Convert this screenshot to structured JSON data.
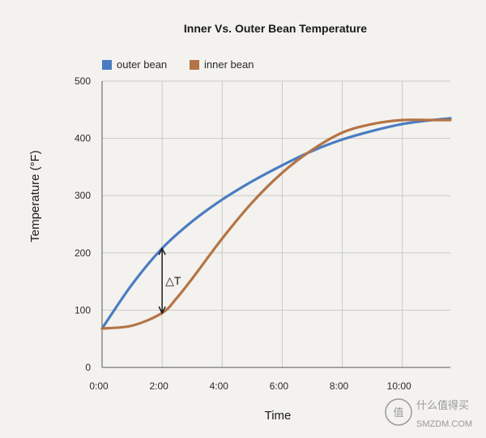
{
  "chart_data": {
    "type": "line",
    "title": "Inner Vs. Outer Bean Temperature",
    "xlabel": "Time",
    "ylabel": "Temperature (°F)",
    "xlim": [
      0,
      11.6
    ],
    "ylim": [
      0,
      500
    ],
    "x_ticks": [
      {
        "value": 0,
        "label": "0:00"
      },
      {
        "value": 2,
        "label": "2:00"
      },
      {
        "value": 4,
        "label": "4:00"
      },
      {
        "value": 6,
        "label": "6:00"
      },
      {
        "value": 8,
        "label": "8:00"
      },
      {
        "value": 10,
        "label": "10:00"
      }
    ],
    "y_ticks": [
      {
        "value": 0,
        "label": "0"
      },
      {
        "value": 100,
        "label": "100"
      },
      {
        "value": 200,
        "label": "200"
      },
      {
        "value": 300,
        "label": "300"
      },
      {
        "value": 400,
        "label": "400"
      },
      {
        "value": 500,
        "label": "500"
      }
    ],
    "grid": true,
    "legend_position": "top-left",
    "series": [
      {
        "name": "outer bean",
        "color": "#4a7cc2",
        "x": [
          0,
          1,
          2,
          3,
          4,
          5,
          6,
          7,
          8,
          9,
          10,
          11,
          11.6
        ],
        "y": [
          68,
          145,
          208,
          255,
          293,
          325,
          353,
          378,
          398,
          413,
          425,
          432,
          435
        ]
      },
      {
        "name": "inner bean",
        "color": "#b57446",
        "x": [
          0,
          1,
          2,
          2.5,
          3,
          4,
          5,
          6,
          7,
          8,
          9,
          10,
          11,
          11.6
        ],
        "y": [
          68,
          73,
          95,
          122,
          155,
          225,
          288,
          340,
          380,
          410,
          425,
          432,
          432,
          432
        ]
      }
    ],
    "annotations": [
      {
        "text": "△T",
        "x": 2,
        "y_from": 95,
        "y_to": 208
      }
    ]
  },
  "watermark": {
    "text_cn": "什么值得买",
    "text_en": "SMZDM.COM",
    "logo_char": "值"
  }
}
